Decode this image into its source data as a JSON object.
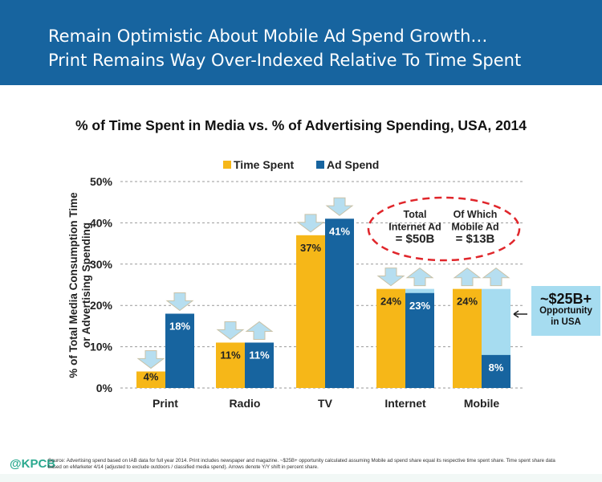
{
  "header": {
    "line1": "Remain Optimistic About Mobile Ad Spend Growth…",
    "line2": "Print Remains Way Over-Indexed Relative To Time Spent"
  },
  "chart_data": {
    "type": "bar",
    "title": "% of Time Spent in Media vs. % of Advertising Spending, USA, 2014",
    "ylabel": "% of Total Media Consumption Time or Advertising Spending",
    "ylabel_lines": [
      "% of Total Media Consumption Time",
      "or Advertising Spending"
    ],
    "ylim": [
      0,
      50
    ],
    "yticks": [
      "0%",
      "10%",
      "20%",
      "30%",
      "40%",
      "50%"
    ],
    "grid": true,
    "legend_position": "top",
    "categories": [
      "Print",
      "Radio",
      "TV",
      "Internet",
      "Mobile"
    ],
    "series": [
      {
        "name": "Time Spent",
        "color": "#f6b718",
        "values": [
          4,
          11,
          37,
          24,
          24
        ],
        "labels": [
          "4%",
          "11%",
          "37%",
          "24%",
          "24%"
        ],
        "yoy_arrows": [
          "down",
          "down",
          "down",
          "down",
          "up"
        ]
      },
      {
        "name": "Ad Spend",
        "color": "#17649f",
        "values": [
          18,
          11,
          41,
          23,
          8
        ],
        "labels": [
          "18%",
          "11%",
          "41%",
          "23%",
          "8%"
        ],
        "yoy_arrows": [
          "down",
          "up",
          "down",
          "up",
          "up"
        ]
      }
    ],
    "opportunity": {
      "categories": [
        "Internet",
        "Mobile"
      ],
      "values": [
        24,
        24
      ],
      "color": "#a6dcf0"
    },
    "annotations": {
      "internet_total": [
        "Total",
        "Internet Ad",
        "= $50B"
      ],
      "mobile_total": [
        "Of Which",
        "Mobile Ad",
        "= $13B"
      ],
      "opportunity_box": [
        "~$25B+",
        "Opportunity",
        "in USA"
      ]
    }
  },
  "footer": {
    "logo": "@KPCB",
    "source": "Source: Advertising spend based on IAB data for full year 2014. Print includes newspaper and magazine. ~$25B+ opportunity calculated assuming Mobile ad spend share equal its respective time spent share. Time spent share data based on eMarketer 4/14 (adjusted to exclude outdoors / classified media spend). Arrows denote Y/Y shift in percent share."
  }
}
